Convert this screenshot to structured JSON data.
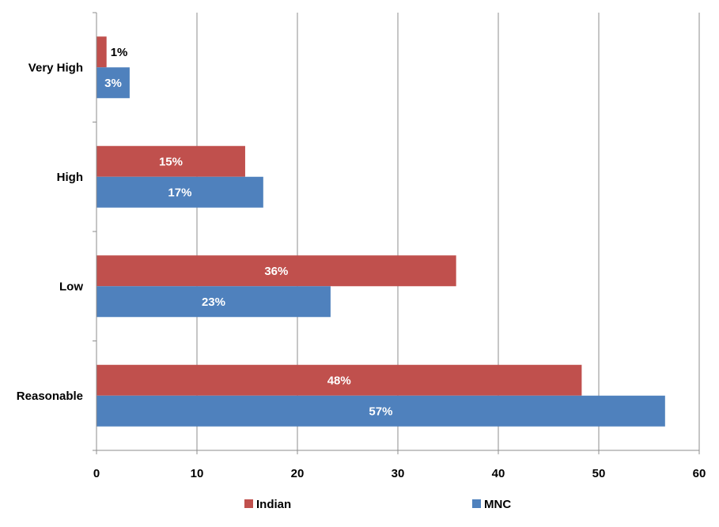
{
  "chart_data": {
    "type": "bar",
    "orientation": "horizontal",
    "categories": [
      "Very High",
      "High",
      "Low",
      "Reasonable"
    ],
    "series": [
      {
        "name": "Indian",
        "color": "#C0504D",
        "values": [
          1,
          14.8,
          35.8,
          48.3
        ],
        "labels": [
          "1%",
          "15%",
          "36%",
          "48%"
        ]
      },
      {
        "name": "MNC",
        "color": "#4F81BD",
        "values": [
          3.3,
          16.6,
          23.3,
          56.6
        ],
        "labels": [
          "3%",
          "17%",
          "23%",
          "57%"
        ]
      }
    ],
    "xlim": [
      0,
      60
    ],
    "xticks": [
      "0",
      "10",
      "20",
      "30",
      "40",
      "50",
      "60"
    ],
    "grid": "vertical",
    "legend": "bottom"
  }
}
